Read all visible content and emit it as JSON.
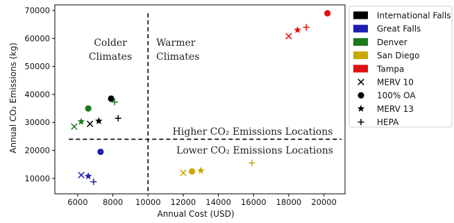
{
  "chart_data": {
    "type": "scatter",
    "xlabel": "Annual Cost (USD)",
    "ylabel": "Annual CO₂ Emissions (kg)",
    "xlim": [
      4700,
      21200
    ],
    "ylim": [
      4500,
      72000
    ],
    "xticks": [
      6000,
      8000,
      10000,
      12000,
      14000,
      16000,
      18000,
      20000
    ],
    "yticks": [
      10000,
      20000,
      30000,
      40000,
      50000,
      60000,
      70000
    ],
    "xtick_labels": [
      "6000",
      "8000",
      "10000",
      "12000",
      "14000",
      "16000",
      "18000",
      "20000"
    ],
    "ytick_labels": [
      "10000",
      "20000",
      "30000",
      "40000",
      "50000",
      "60000",
      "70000"
    ],
    "grid": false,
    "legend_position": "outside-right",
    "divider_lines": [
      {
        "orientation": "vertical",
        "value": 10000,
        "style": "dashed"
      },
      {
        "orientation": "horizontal",
        "value": 24000,
        "style": "dashed"
      }
    ],
    "annotations": {
      "colder": [
        "Colder",
        "Climates"
      ],
      "warmer": [
        "Warmer",
        "Climates"
      ],
      "higher": "Higher CO₂ Emissions Locations",
      "lower": "Lower CO₂ Emissions Locations"
    },
    "locations": [
      {
        "name": "International Falls",
        "color": "#000000"
      },
      {
        "name": "Great Falls",
        "color": "#1f1fb4"
      },
      {
        "name": "Denver",
        "color": "#1a7a1a"
      },
      {
        "name": "San Diego",
        "color": "#c8a800"
      },
      {
        "name": "Tampa",
        "color": "#e01010"
      }
    ],
    "filters": [
      {
        "name": "MERV 10",
        "marker": "x"
      },
      {
        "name": "100% OA",
        "marker": "circle"
      },
      {
        "name": "MERV 13",
        "marker": "star"
      },
      {
        "name": "HEPA",
        "marker": "plus"
      }
    ],
    "series": [
      {
        "location": "International Falls",
        "points": [
          {
            "filter": "MERV 10",
            "x": 6700,
            "y": 29500
          },
          {
            "filter": "100% OA",
            "x": 7900,
            "y": 38500
          },
          {
            "filter": "MERV 13",
            "x": 7200,
            "y": 30500
          },
          {
            "filter": "HEPA",
            "x": 8300,
            "y": 31500
          }
        ]
      },
      {
        "location": "Great Falls",
        "points": [
          {
            "filter": "MERV 10",
            "x": 6200,
            "y": 11200
          },
          {
            "filter": "100% OA",
            "x": 7300,
            "y": 19500
          },
          {
            "filter": "MERV 13",
            "x": 6600,
            "y": 10800
          },
          {
            "filter": "HEPA",
            "x": 6900,
            "y": 8800
          }
        ]
      },
      {
        "location": "Denver",
        "points": [
          {
            "filter": "MERV 10",
            "x": 5800,
            "y": 28500
          },
          {
            "filter": "100% OA",
            "x": 6600,
            "y": 35000
          },
          {
            "filter": "MERV 13",
            "x": 6200,
            "y": 30300
          },
          {
            "filter": "HEPA",
            "x": 8100,
            "y": 37300
          }
        ]
      },
      {
        "location": "San Diego",
        "points": [
          {
            "filter": "MERV 10",
            "x": 12000,
            "y": 12000
          },
          {
            "filter": "100% OA",
            "x": 12500,
            "y": 12500
          },
          {
            "filter": "MERV 13",
            "x": 13000,
            "y": 12800
          },
          {
            "filter": "HEPA",
            "x": 15900,
            "y": 15500
          }
        ]
      },
      {
        "location": "Tampa",
        "points": [
          {
            "filter": "MERV 10",
            "x": 18000,
            "y": 60800
          },
          {
            "filter": "100% OA",
            "x": 20200,
            "y": 69000
          },
          {
            "filter": "MERV 13",
            "x": 18500,
            "y": 63000
          },
          {
            "filter": "HEPA",
            "x": 19000,
            "y": 64000
          }
        ]
      }
    ]
  }
}
